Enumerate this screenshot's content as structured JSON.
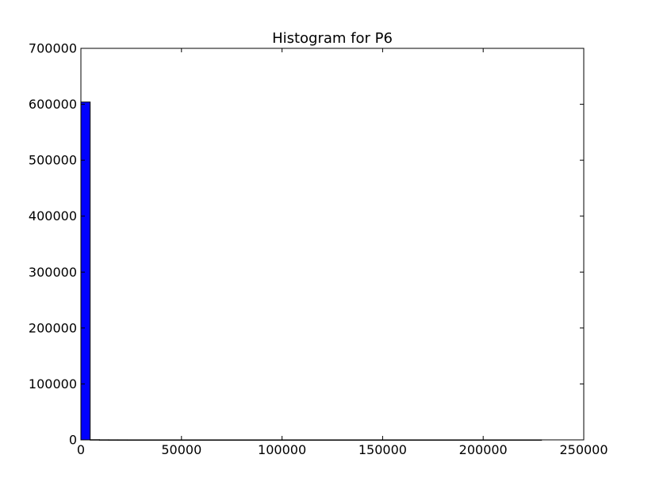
{
  "chart_data": {
    "type": "bar",
    "title": "Histogram for P6",
    "xlabel": "",
    "ylabel": "",
    "xlim": [
      0,
      250000
    ],
    "ylim": [
      0,
      700000
    ],
    "x_ticks": [
      0,
      50000,
      100000,
      150000,
      200000,
      250000
    ],
    "x_tick_labels": [
      "0",
      "50000",
      "100000",
      "150000",
      "200000",
      "250000"
    ],
    "y_ticks": [
      0,
      100000,
      200000,
      300000,
      400000,
      500000,
      600000,
      700000
    ],
    "y_tick_labels": [
      "0",
      "100000",
      "200000",
      "300000",
      "400000",
      "500000",
      "600000",
      "700000"
    ],
    "grid": false,
    "bar_color": "#0000ff",
    "edge_color": "#000000",
    "bins": [
      {
        "x0": 0,
        "x1": 4600,
        "count": 604000
      },
      {
        "x0": 4600,
        "x1": 9200,
        "count": 300
      },
      {
        "x0": 9200,
        "x1": 13800,
        "count": 100
      },
      {
        "x0": 13800,
        "x1": 18400,
        "count": 50
      },
      {
        "x0": 18400,
        "x1": 23000,
        "count": 30
      },
      {
        "x0": 23000,
        "x1": 229000,
        "count": 10
      }
    ]
  }
}
